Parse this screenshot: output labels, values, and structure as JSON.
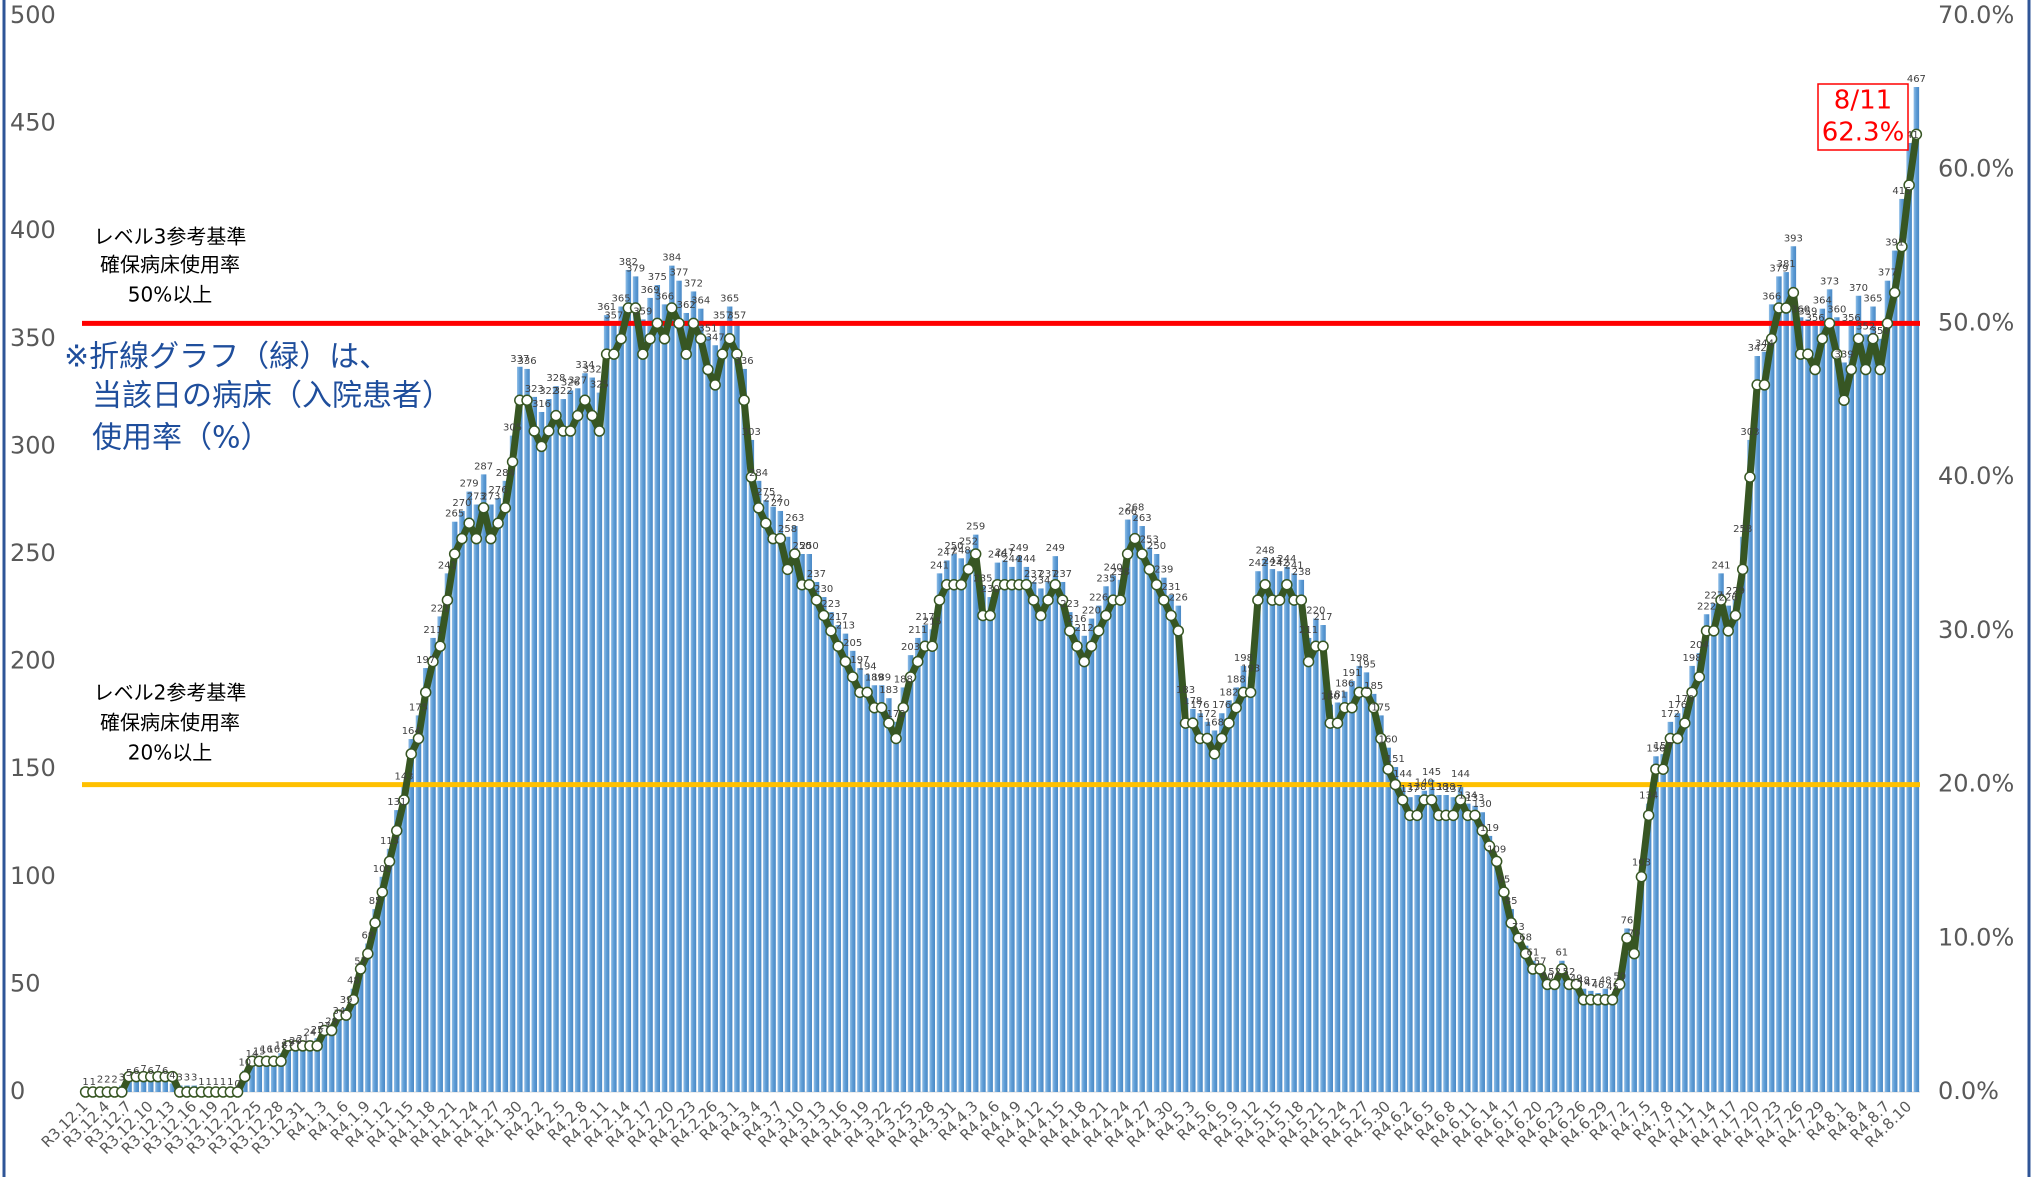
{
  "chart_data": {
    "type": "bar",
    "categories": [
      "R3.12.1",
      null,
      null,
      "R3.12.4",
      null,
      null,
      "R3.12.7",
      null,
      null,
      "R3.12.10",
      null,
      null,
      "R3.12.13",
      null,
      null,
      "R3.12.16",
      null,
      null,
      "R3.12.19",
      null,
      null,
      "R3.12.22",
      null,
      null,
      "R3.12.25",
      null,
      null,
      "R3.12.28",
      null,
      null,
      "R3.12.31",
      null,
      null,
      "R4.1.3",
      null,
      null,
      "R4.1.6",
      null,
      null,
      "R4.1.9",
      null,
      null,
      "R4.1.12",
      null,
      null,
      "R4.1.15",
      null,
      null,
      "R4.1.18",
      null,
      null,
      "R4.1.21",
      null,
      null,
      "R4.1.24",
      null,
      null,
      "R4.1.27",
      null,
      null,
      "R4.1.30",
      null,
      null,
      "R4.2.2",
      null,
      null,
      "R4.2.5",
      null,
      null,
      "R4.2.8",
      null,
      null,
      "R4.2.11",
      null,
      null,
      "R4.2.14",
      null,
      null,
      "R4.2.17",
      null,
      null,
      "R4.2.20",
      null,
      null,
      "R4.2.23",
      null,
      null,
      "R4.2.26",
      null,
      null,
      "R4.3.1",
      null,
      null,
      "R4.3.4",
      null,
      null,
      "R4.3.7",
      null,
      null,
      "R4.3.10",
      null,
      null,
      "R4.3.13",
      null,
      null,
      "R4.3.16",
      null,
      null,
      "R4.3.19",
      null,
      null,
      "R4.3.22",
      null,
      null,
      "R4.3.25",
      null,
      null,
      "R4.3.28",
      null,
      null,
      "R4.3.31",
      null,
      null,
      "R4.4.3",
      null,
      null,
      "R4.4.6",
      null,
      null,
      "R4.4.9",
      null,
      null,
      "R4.4.12",
      null,
      null,
      "R4.4.15",
      null,
      null,
      "R4.4.18",
      null,
      null,
      "R4.4.21",
      null,
      null,
      "R4.4.24",
      null,
      null,
      "R4.4.27",
      null,
      null,
      "R4.4.30",
      null,
      null,
      "R4.5.3",
      null,
      null,
      "R4.5.6",
      null,
      null,
      "R4.5.9",
      null,
      null,
      "R4.5.12",
      null,
      null,
      "R4.5.15",
      null,
      null,
      "R4.5.18",
      null,
      null,
      "R4.5.21",
      null,
      null,
      "R4.5.24",
      null,
      null,
      "R4.5.27",
      null,
      null,
      "R4.5.30",
      null,
      null,
      "R4.6.2",
      null,
      null,
      "R4.6.5",
      null,
      null,
      "R4.6.8",
      null,
      null,
      "R4.6.11",
      null,
      null,
      "R4.6.14",
      null,
      null,
      "R4.6.17",
      null,
      null,
      "R4.6.20",
      null,
      null,
      "R4.6.23",
      null,
      null,
      "R4.6.26",
      null,
      null,
      "R4.6.29",
      null,
      null,
      "R4.7.2",
      null,
      null,
      "R4.7.5",
      null,
      null,
      "R4.7.8",
      null,
      null,
      "R4.7.11",
      null,
      null,
      "R4.7.14",
      null,
      null,
      "R4.7.17",
      null,
      null,
      "R4.7.20",
      null,
      null,
      "R4.7.23",
      null,
      null,
      "R4.7.26",
      null,
      null,
      "R4.7.29",
      null,
      null,
      "R4.8.1",
      null,
      null,
      "R4.8.4",
      null,
      null,
      "R4.8.7",
      null,
      null,
      "R4.8.10",
      null
    ],
    "series": [
      {
        "type": "bar",
        "color": "#5b9bd5",
        "values": [
          1,
          1,
          2,
          2,
          2,
          3,
          5,
          6,
          7,
          6,
          7,
          6,
          4,
          3,
          3,
          3,
          1,
          1,
          1,
          1,
          1,
          0,
          10,
          14,
          15,
          16,
          16,
          18,
          19,
          20,
          21,
          24,
          25,
          27,
          29,
          34,
          39,
          48,
          57,
          69,
          85,
          100,
          113,
          131,
          143,
          164,
          175,
          197,
          211,
          221,
          241,
          265,
          270,
          279,
          273,
          287,
          273,
          276,
          284,
          305,
          337,
          336,
          323,
          316,
          322,
          328,
          322,
          326,
          327,
          334,
          332,
          325,
          361,
          357,
          365,
          382,
          379,
          359,
          369,
          375,
          366,
          384,
          377,
          362,
          372,
          364,
          351,
          347,
          357,
          365,
          357,
          336,
          303,
          284,
          275,
          272,
          270,
          258,
          263,
          250,
          250,
          237,
          230,
          223,
          217,
          213,
          205,
          197,
          194,
          189,
          189,
          183,
          172,
          188,
          203,
          211,
          217,
          215,
          241,
          247,
          250,
          248,
          252,
          259,
          235,
          230,
          246,
          247,
          244,
          249,
          244,
          237,
          234,
          237,
          249,
          237,
          223,
          216,
          212,
          220,
          226,
          235,
          240,
          238,
          266,
          268,
          263,
          253,
          250,
          239,
          231,
          226,
          183,
          178,
          176,
          172,
          168,
          176,
          182,
          188,
          198,
          193,
          242,
          248,
          243,
          242,
          244,
          241,
          238,
          211,
          220,
          217,
          180,
          181,
          186,
          191,
          198,
          195,
          185,
          175,
          160,
          151,
          144,
          137,
          138,
          140,
          145,
          138,
          138,
          137,
          144,
          134,
          133,
          130,
          119,
          109,
          95,
          85,
          73,
          68,
          61,
          57,
          50,
          52,
          61,
          52,
          49,
          48,
          47,
          46,
          48,
          45,
          50,
          76,
          70,
          103,
          134,
          156,
          157,
          172,
          176,
          179,
          198,
          204,
          222,
          227,
          241,
          226,
          229,
          258,
          303,
          342,
          344,
          366,
          379,
          381,
          393,
          360,
          359,
          356,
          364,
          373,
          360,
          339,
          356,
          370,
          352,
          365,
          350,
          377,
          391,
          415,
          441,
          467
        ]
      },
      {
        "type": "line",
        "axis": "y2",
        "color": "#375623",
        "values": [
          0,
          0,
          0,
          0,
          0,
          0,
          1,
          1,
          1,
          1,
          1,
          1,
          1,
          0,
          0,
          0,
          0,
          0,
          0,
          0,
          0,
          0,
          1,
          2,
          2,
          2,
          2,
          2,
          3,
          3,
          3,
          3,
          3,
          4,
          4,
          5,
          5,
          6,
          8,
          9,
          11,
          13,
          15,
          17,
          19,
          22,
          23,
          26,
          28,
          29,
          32,
          35,
          36,
          37,
          36,
          38,
          36,
          37,
          38,
          41,
          45,
          45,
          43,
          42,
          43,
          44,
          43,
          43,
          44,
          45,
          44,
          43,
          48,
          48,
          49,
          51,
          51,
          48,
          49,
          50,
          49,
          51,
          50,
          48,
          50,
          49,
          47,
          46,
          48,
          49,
          48,
          45,
          40,
          38,
          37,
          36,
          36,
          34,
          35,
          33,
          33,
          32,
          31,
          30,
          29,
          28,
          27,
          26,
          26,
          25,
          25,
          24,
          23,
          25,
          27,
          28,
          29,
          29,
          32,
          33,
          33,
          33,
          34,
          35,
          31,
          31,
          33,
          33,
          33,
          33,
          33,
          32,
          31,
          32,
          33,
          32,
          30,
          29,
          28,
          29,
          30,
          31,
          32,
          32,
          35,
          36,
          35,
          34,
          33,
          32,
          31,
          30,
          24,
          24,
          23,
          23,
          22,
          23,
          24,
          25,
          26,
          26,
          32,
          33,
          32,
          32,
          33,
          32,
          32,
          28,
          29,
          29,
          24,
          24,
          25,
          25,
          26,
          26,
          25,
          23,
          21,
          20,
          19,
          18,
          18,
          19,
          19,
          18,
          18,
          18,
          19,
          18,
          18,
          17,
          16,
          15,
          13,
          11,
          10,
          9,
          8,
          8,
          7,
          7,
          8,
          7,
          7,
          6,
          6,
          6,
          6,
          6,
          7,
          10,
          9,
          14,
          18,
          21,
          21,
          23,
          23,
          24,
          26,
          27,
          30,
          30,
          32,
          30,
          31,
          34,
          40,
          46,
          46,
          49,
          51,
          51,
          52,
          48,
          48,
          47,
          49,
          50,
          48,
          45,
          47,
          49,
          47,
          49,
          47,
          50,
          52,
          55,
          59,
          62.3
        ]
      }
    ],
    "ylim": [
      0,
      500
    ],
    "yticks": [
      0,
      50,
      100,
      150,
      200,
      250,
      300,
      350,
      400,
      450,
      500
    ],
    "y2lim": [
      0,
      70
    ],
    "y2ticks": [
      {
        "value": 0,
        "label": "0.0%"
      },
      {
        "value": 10,
        "label": "10.0%"
      },
      {
        "value": 20,
        "label": "20.0%"
      },
      {
        "value": 30,
        "label": "30.0%"
      },
      {
        "value": 40,
        "label": "40.0%"
      },
      {
        "value": 50,
        "label": "50.0%"
      },
      {
        "value": 60,
        "label": "60.0%"
      },
      {
        "value": 70,
        "label": "70.0%"
      }
    ],
    "ref_lines": [
      {
        "value": 50,
        "axis": "y2",
        "color": "#ff0000"
      },
      {
        "value": 20,
        "axis": "y2",
        "color": "#ffc000"
      }
    ],
    "annotations": {
      "level3": [
        "レベル3参考基準",
        "確保病床使用率",
        "50%以上"
      ],
      "level2": [
        "レベル2参考基準",
        "確保病床使用率",
        "20%以上"
      ],
      "note": [
        "※折線グラフ（緑）は、",
        "当該日の病床（入院患者）",
        "使用率（%）"
      ],
      "callout": [
        "8/11",
        "62.3%"
      ]
    },
    "grid": false
  }
}
